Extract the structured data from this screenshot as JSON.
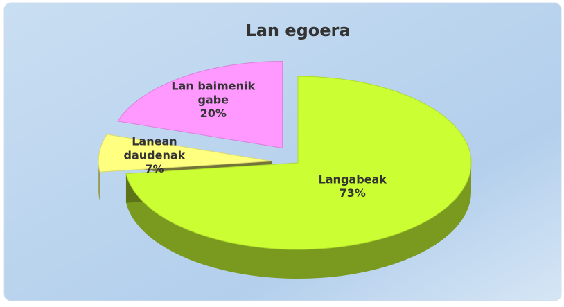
{
  "chart_data": {
    "type": "pie",
    "title": "Lan egoera",
    "categories": [
      "Langabeak",
      "Lanean daudenak",
      "Lan baimenik gabe"
    ],
    "values": [
      73,
      7,
      20
    ],
    "value_labels": [
      "73%",
      "7%",
      "20%"
    ],
    "colors": [
      "#ccff33",
      "#ffff80",
      "#ff99ff"
    ]
  }
}
